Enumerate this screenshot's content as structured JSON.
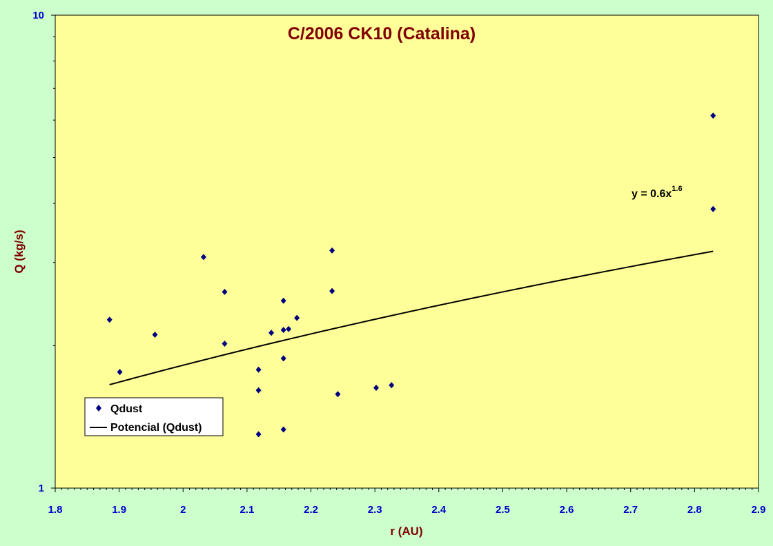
{
  "chart_data": {
    "type": "scatter",
    "title": "C/2006 CK10 (Catalina)",
    "xlabel": "r (AU)",
    "ylabel": "Q (kg/s)",
    "xlim": [
      1.8,
      2.9
    ],
    "ylim": [
      1,
      10
    ],
    "y_scale": "log",
    "x_ticks": [
      "1.8",
      "1.9",
      "2",
      "2.1",
      "2.2",
      "2.3",
      "2.4",
      "2.5",
      "2.6",
      "2.7",
      "2.8",
      "2.9"
    ],
    "y_ticks": [
      "1",
      "10"
    ],
    "grid": false,
    "legend_position": "bottom-left",
    "colors": {
      "plot_bg": "#ffff99",
      "page_bg": "#ccffcc",
      "marker": "#000080",
      "line": "#000000",
      "title": "#800000",
      "ticks": "#0000cc",
      "axis_labels": "#800000"
    },
    "series": [
      {
        "name": "Qdust",
        "marker": "diamond",
        "x": [
          1.885,
          1.901,
          1.956,
          2.032,
          2.065,
          2.065,
          2.118,
          2.118,
          2.118,
          2.138,
          2.157,
          2.157,
          2.157,
          2.157,
          2.165,
          2.178,
          2.233,
          2.233,
          2.242,
          2.302,
          2.326,
          2.829,
          2.829
        ],
        "y": [
          2.27,
          1.76,
          2.11,
          3.08,
          2.02,
          2.6,
          1.78,
          1.61,
          1.3,
          2.13,
          2.16,
          1.88,
          2.49,
          1.33,
          2.17,
          2.29,
          3.18,
          2.61,
          1.58,
          1.63,
          1.65,
          6.13,
          3.89
        ]
      },
      {
        "name": "Potencial (Qdust)",
        "type": "power_fit",
        "coefficient": 0.6,
        "exponent": 1.6,
        "x_range": [
          1.885,
          2.829
        ]
      }
    ],
    "annotations": [
      {
        "text": "y = 0.6x",
        "superscript": "1.6"
      }
    ]
  }
}
